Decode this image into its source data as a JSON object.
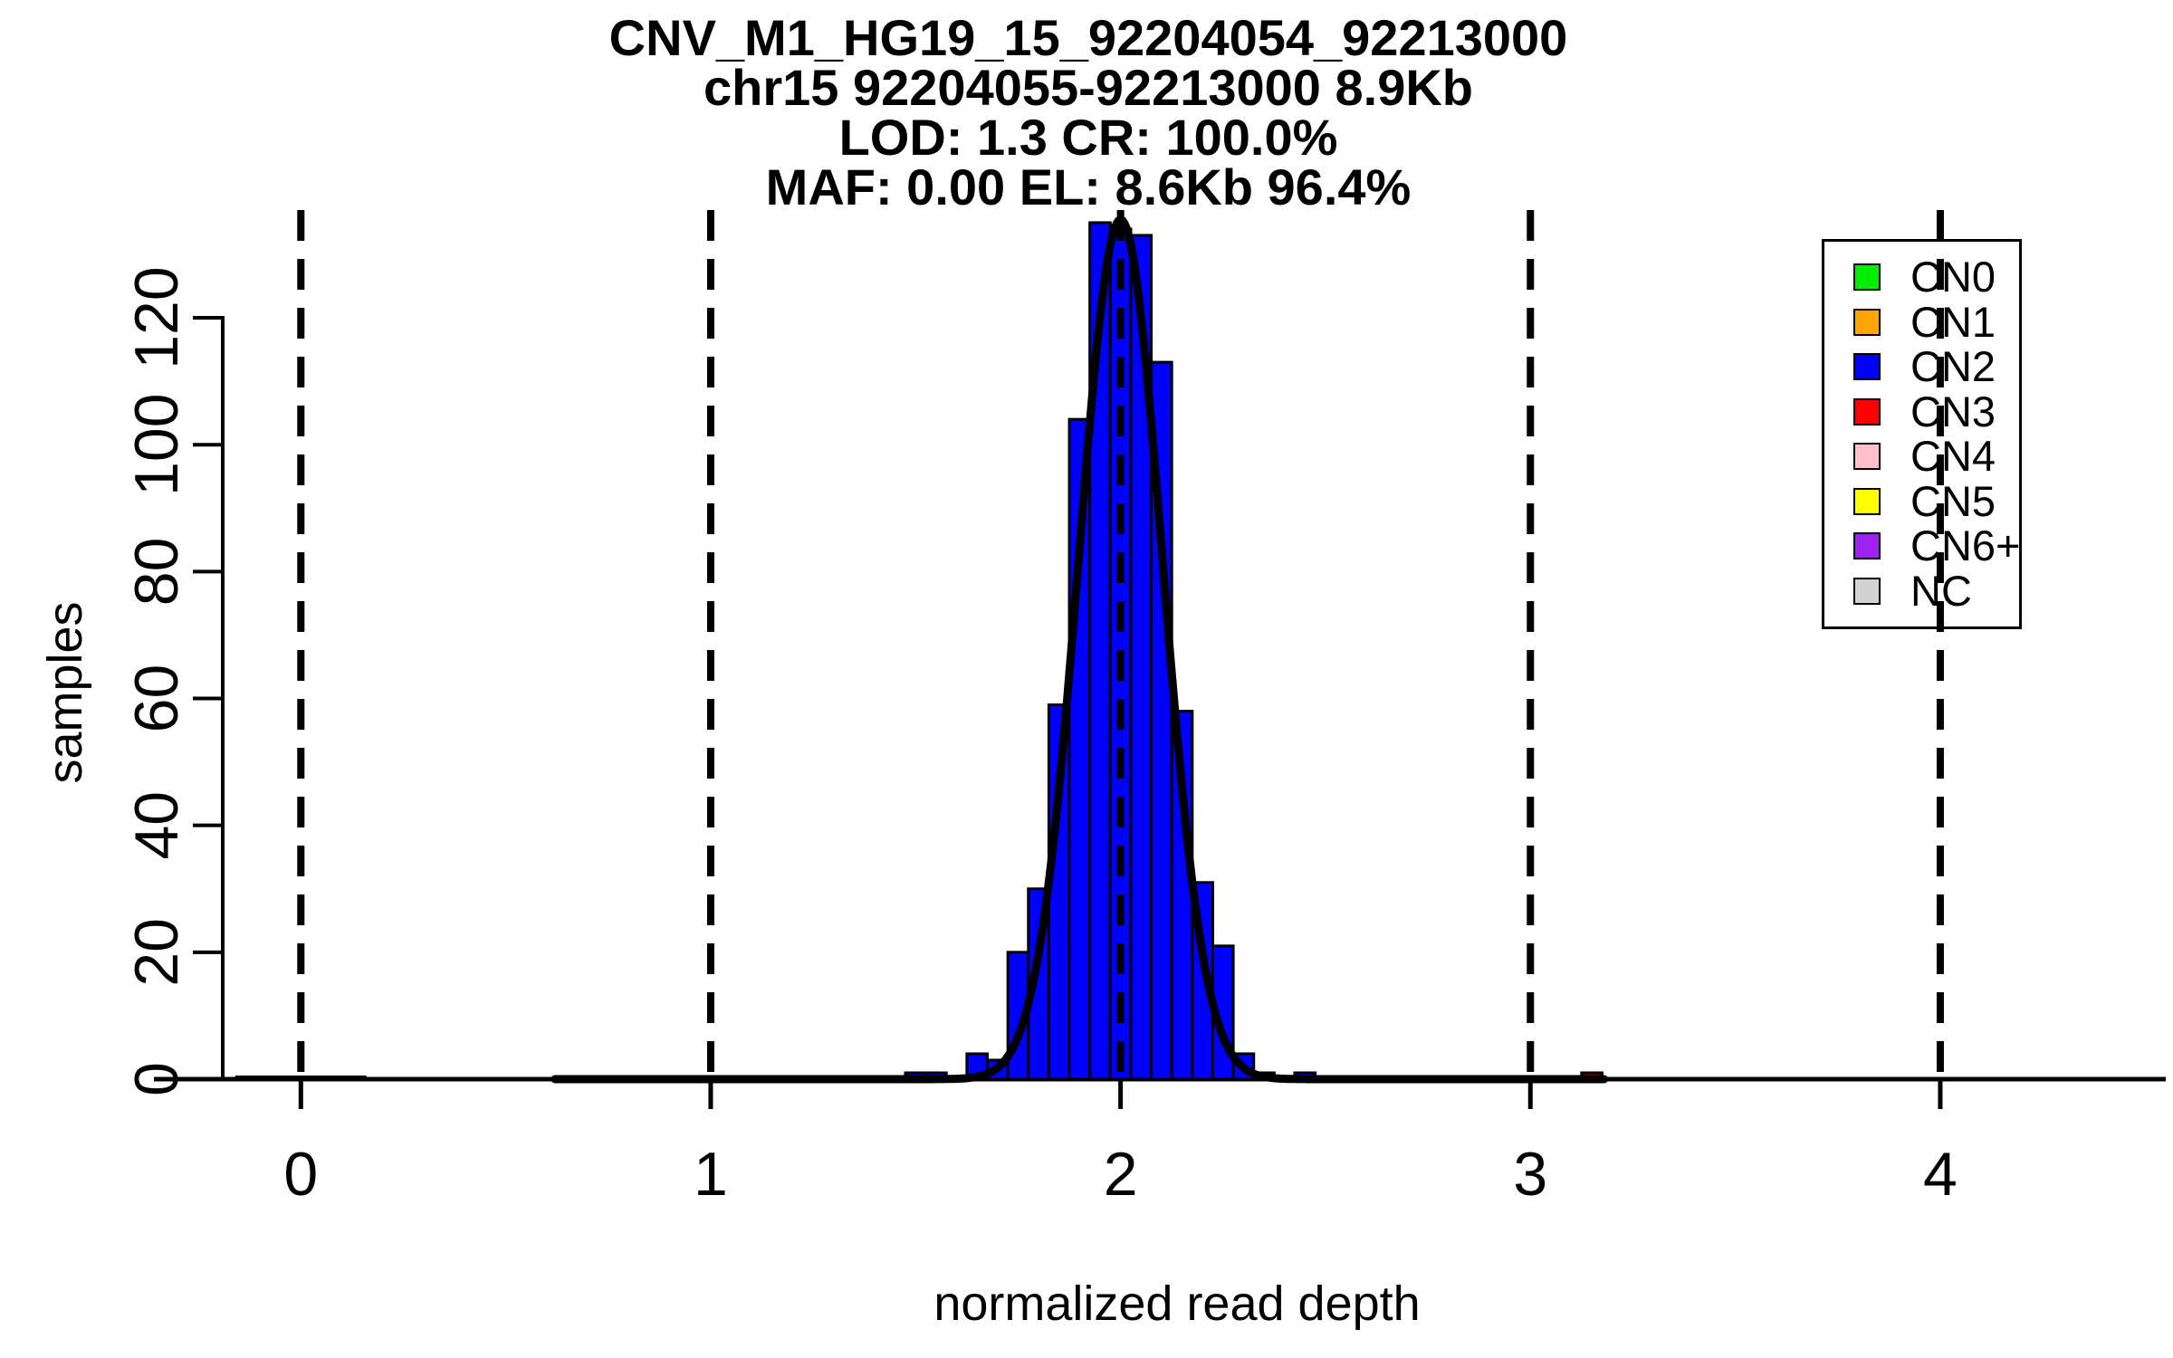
{
  "title": {
    "line1": "CNV_M1_HG19_15_92204054_92213000",
    "line2": "chr15 92204055-92213000 8.9Kb",
    "line3": "LOD: 1.3 CR: 100.0%",
    "line4": "MAF: 0.00 EL: 8.6Kb 96.4%"
  },
  "axes": {
    "xlabel": "normalized read depth",
    "ylabel": "samples",
    "x_tick_labels": [
      "0",
      "1",
      "2",
      "3",
      "4"
    ],
    "y_tick_labels": [
      "0",
      "20",
      "40",
      "60",
      "80",
      "100",
      "120"
    ]
  },
  "legend": {
    "items": [
      {
        "label": "CN0",
        "color": "#00EE00"
      },
      {
        "label": "CN1",
        "color": "#FFA500"
      },
      {
        "label": "CN2",
        "color": "#0000FF"
      },
      {
        "label": "CN3",
        "color": "#FF0000"
      },
      {
        "label": "CN4",
        "color": "#FFC0CB"
      },
      {
        "label": "CN5",
        "color": "#FFFF00"
      },
      {
        "label": "CN6+",
        "color": "#A020F0"
      },
      {
        "label": "NC",
        "color": "#D3D3D3"
      }
    ]
  },
  "colors": {
    "background": "#FFFFFF",
    "axis": "#000000",
    "bar_fill_cn2": "#0000FF",
    "bar_fill_cn3": "#A00000",
    "bar_stroke": "#000000",
    "curve": "#000000",
    "guide": "#000000"
  },
  "chart_data": {
    "type": "bar",
    "subtype": "histogram-with-gaussian-fit",
    "title": "CNV_M1_HG19_15_92204054_92213000",
    "subtitle_lines": [
      "chr15 92204055-92213000 8.9Kb",
      "LOD: 1.3 CR: 100.0%",
      "MAF: 0.00 EL: 8.6Kb 96.4%"
    ],
    "xlabel": "normalized read depth",
    "ylabel": "samples",
    "xlim": [
      -0.36,
      4.56
    ],
    "ylim": [
      0,
      137
    ],
    "x_ticks": [
      0,
      1,
      2,
      3,
      4
    ],
    "y_ticks": [
      0,
      20,
      40,
      60,
      80,
      100,
      120
    ],
    "grid": false,
    "legend_position": "top-right",
    "bin_width": 0.05,
    "bars": [
      {
        "center": 1.5,
        "count": 1,
        "cn": "CN2"
      },
      {
        "center": 1.55,
        "count": 1,
        "cn": "CN2"
      },
      {
        "center": 1.6,
        "count": 0,
        "cn": "CN2"
      },
      {
        "center": 1.65,
        "count": 4,
        "cn": "CN2"
      },
      {
        "center": 1.7,
        "count": 3,
        "cn": "CN2"
      },
      {
        "center": 1.75,
        "count": 20,
        "cn": "CN2"
      },
      {
        "center": 1.8,
        "count": 30,
        "cn": "CN2"
      },
      {
        "center": 1.85,
        "count": 59,
        "cn": "CN2"
      },
      {
        "center": 1.9,
        "count": 104,
        "cn": "CN2"
      },
      {
        "center": 1.95,
        "count": 135,
        "cn": "CN2"
      },
      {
        "center": 2.0,
        "count": 134,
        "cn": "CN2"
      },
      {
        "center": 2.05,
        "count": 133,
        "cn": "CN2"
      },
      {
        "center": 2.1,
        "count": 113,
        "cn": "CN2"
      },
      {
        "center": 2.15,
        "count": 58,
        "cn": "CN2"
      },
      {
        "center": 2.2,
        "count": 31,
        "cn": "CN2"
      },
      {
        "center": 2.25,
        "count": 21,
        "cn": "CN2"
      },
      {
        "center": 2.3,
        "count": 4,
        "cn": "CN2"
      },
      {
        "center": 2.35,
        "count": 1,
        "cn": "CN2"
      },
      {
        "center": 2.4,
        "count": 0,
        "cn": "CN2"
      },
      {
        "center": 2.45,
        "count": 1,
        "cn": "CN2"
      },
      {
        "center": 3.15,
        "count": 1,
        "cn": "CN3"
      }
    ],
    "fit_curve": {
      "shape": "gaussian",
      "mean": 2.0,
      "sd": 0.102,
      "peak": 135.5,
      "x_from": 0.62,
      "x_to": 3.18
    },
    "dashed_guides_x": [
      0,
      1,
      2,
      3,
      4
    ],
    "baseline_bump_x": [
      -0.16,
      0.16
    ]
  }
}
